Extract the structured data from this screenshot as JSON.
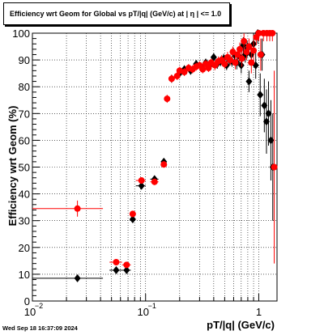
{
  "chart_data": {
    "type": "scatter",
    "title": "Efficiency wrt Geom for Global vs pT/|q| (GeV/c) at |  η  | <= 1.0",
    "xlabel": "pT/|q| (GeV/c)",
    "ylabel": "Efficiency wrt Geom (%)",
    "xscale": "log",
    "xlim": [
      0.01,
      1.45
    ],
    "ylim": [
      0,
      100
    ],
    "xticks": [
      {
        "value": 0.01,
        "base": "10",
        "exp": "−2"
      },
      {
        "value": 0.1,
        "base": "10",
        "exp": "−1"
      },
      {
        "value": 1,
        "base": "1",
        "exp": ""
      }
    ],
    "yticks": [
      "0",
      "10",
      "20",
      "30",
      "40",
      "50",
      "60",
      "70",
      "80",
      "90",
      "100"
    ],
    "grid": true,
    "timestamp": "Wed Sep 18 16:37:09 2024",
    "series": [
      {
        "color": "#000000",
        "marker": "diamond",
        "points": [
          {
            "x": 0.025,
            "y": 8.5,
            "xlo": 0.01,
            "xhi": 0.042,
            "err": 1.0
          },
          {
            "x": 0.055,
            "y": 11.5,
            "xlo": 0.048,
            "xhi": 0.062,
            "err": 0.8
          },
          {
            "x": 0.068,
            "y": 11.5,
            "xlo": 0.062,
            "xhi": 0.074,
            "err": 0.8
          },
          {
            "x": 0.077,
            "y": 30.5,
            "xlo": 0.074,
            "xhi": 0.08,
            "err": 1.2
          },
          {
            "x": 0.092,
            "y": 43.0,
            "xlo": 0.082,
            "xhi": 0.1,
            "err": 1.2
          },
          {
            "x": 0.12,
            "y": 45.5,
            "xlo": 0.11,
            "xhi": 0.13,
            "err": 1.2
          },
          {
            "x": 0.145,
            "y": 52.0,
            "xlo": 0.14,
            "xhi": 0.15,
            "err": 1.2
          },
          {
            "x": 0.17,
            "y": 83.0,
            "err": 1.5
          },
          {
            "x": 0.2,
            "y": 85.0,
            "err": 1.5
          },
          {
            "x": 0.22,
            "y": 86.5,
            "err": 1.5
          },
          {
            "x": 0.25,
            "y": 86.0,
            "err": 1.5
          },
          {
            "x": 0.28,
            "y": 88.5,
            "err": 1.5
          },
          {
            "x": 0.31,
            "y": 87.5,
            "err": 1.5
          },
          {
            "x": 0.34,
            "y": 89.0,
            "err": 1.5
          },
          {
            "x": 0.37,
            "y": 88.0,
            "err": 1.5
          },
          {
            "x": 0.4,
            "y": 91.0,
            "err": 1.5
          },
          {
            "x": 0.43,
            "y": 88.5,
            "err": 1.8
          },
          {
            "x": 0.46,
            "y": 89.5,
            "err": 1.8
          },
          {
            "x": 0.49,
            "y": 90.5,
            "err": 1.8
          },
          {
            "x": 0.52,
            "y": 88.0,
            "err": 1.8
          },
          {
            "x": 0.55,
            "y": 90.0,
            "err": 2.0
          },
          {
            "x": 0.58,
            "y": 89.5,
            "err": 2.0
          },
          {
            "x": 0.61,
            "y": 92.0,
            "err": 2.0
          },
          {
            "x": 0.64,
            "y": 89.0,
            "err": 2.5
          },
          {
            "x": 0.67,
            "y": 91.5,
            "err": 2.5
          },
          {
            "x": 0.7,
            "y": 88.0,
            "err": 3.0
          },
          {
            "x": 0.73,
            "y": 95.5,
            "err": 3.0
          },
          {
            "x": 0.76,
            "y": 92.0,
            "err": 3.0
          },
          {
            "x": 0.79,
            "y": 94.0,
            "err": 3.0
          },
          {
            "x": 0.82,
            "y": 82.0,
            "err": 4.0
          },
          {
            "x": 0.86,
            "y": 92.0,
            "err": 4.0
          },
          {
            "x": 0.9,
            "y": 96.0,
            "err": 4.0
          },
          {
            "x": 0.94,
            "y": 88.0,
            "err": 5.0
          },
          {
            "x": 0.98,
            "y": 100.0,
            "err": 4.0
          },
          {
            "x": 1.03,
            "y": 77.0,
            "err": 8.0
          },
          {
            "x": 1.07,
            "y": 92.0,
            "err": 6.0
          },
          {
            "x": 1.12,
            "y": 73.0,
            "err": 10.0
          },
          {
            "x": 1.17,
            "y": 67.0,
            "err": 12.0
          },
          {
            "x": 1.22,
            "y": 70.0,
            "err": 12.0
          },
          {
            "x": 1.28,
            "y": 60.0,
            "err": 15.0
          },
          {
            "x": 1.33,
            "y": 50.0,
            "err": 20.0
          }
        ]
      },
      {
        "color": "#ff0000",
        "marker": "circle",
        "points": [
          {
            "x": 0.025,
            "y": 34.5,
            "xlo": 0.01,
            "xhi": 0.042,
            "err": 3.0
          },
          {
            "x": 0.055,
            "y": 14.5,
            "xlo": 0.048,
            "xhi": 0.062,
            "err": 1.0
          },
          {
            "x": 0.068,
            "y": 13.5,
            "xlo": 0.062,
            "xhi": 0.074,
            "err": 1.0
          },
          {
            "x": 0.077,
            "y": 32.5,
            "xlo": 0.074,
            "xhi": 0.08,
            "err": 1.2
          },
          {
            "x": 0.092,
            "y": 45.0,
            "xlo": 0.082,
            "xhi": 0.1,
            "err": 1.2
          },
          {
            "x": 0.12,
            "y": 44.5,
            "xlo": 0.11,
            "xhi": 0.13,
            "err": 1.2
          },
          {
            "x": 0.145,
            "y": 51.0,
            "xlo": 0.14,
            "xhi": 0.15,
            "err": 1.2
          },
          {
            "x": 0.155,
            "y": 75.5,
            "err": 1.5
          },
          {
            "x": 0.17,
            "y": 83.0,
            "err": 1.5
          },
          {
            "x": 0.19,
            "y": 84.0,
            "err": 1.5
          },
          {
            "x": 0.2,
            "y": 86.0,
            "err": 1.5
          },
          {
            "x": 0.22,
            "y": 85.5,
            "err": 1.5
          },
          {
            "x": 0.24,
            "y": 87.0,
            "err": 1.5
          },
          {
            "x": 0.26,
            "y": 86.5,
            "err": 1.5
          },
          {
            "x": 0.28,
            "y": 87.5,
            "err": 1.5
          },
          {
            "x": 0.3,
            "y": 88.0,
            "err": 1.5
          },
          {
            "x": 0.32,
            "y": 86.5,
            "err": 1.5
          },
          {
            "x": 0.34,
            "y": 88.5,
            "err": 1.5
          },
          {
            "x": 0.36,
            "y": 87.0,
            "err": 1.5
          },
          {
            "x": 0.38,
            "y": 89.0,
            "err": 1.5
          },
          {
            "x": 0.41,
            "y": 88.0,
            "err": 1.8
          },
          {
            "x": 0.44,
            "y": 89.5,
            "err": 1.8
          },
          {
            "x": 0.47,
            "y": 90.0,
            "err": 1.8
          },
          {
            "x": 0.5,
            "y": 88.5,
            "err": 1.8
          },
          {
            "x": 0.53,
            "y": 91.0,
            "err": 2.0
          },
          {
            "x": 0.56,
            "y": 90.0,
            "err": 2.0
          },
          {
            "x": 0.59,
            "y": 93.0,
            "err": 2.0
          },
          {
            "x": 0.62,
            "y": 89.0,
            "err": 2.5
          },
          {
            "x": 0.65,
            "y": 92.0,
            "err": 2.5
          },
          {
            "x": 0.68,
            "y": 94.0,
            "err": 2.5
          },
          {
            "x": 0.71,
            "y": 90.5,
            "err": 3.0
          },
          {
            "x": 0.74,
            "y": 97.0,
            "err": 3.0
          },
          {
            "x": 0.78,
            "y": 93.0,
            "err": 3.0
          },
          {
            "x": 0.82,
            "y": 95.0,
            "err": 3.0
          },
          {
            "x": 0.86,
            "y": 89.0,
            "err": 4.0
          },
          {
            "x": 0.9,
            "y": 93.5,
            "err": 4.0
          },
          {
            "x": 0.95,
            "y": 98.5,
            "err": 3.0
          },
          {
            "x": 1.0,
            "y": 100.0,
            "err": 3.0
          },
          {
            "x": 1.04,
            "y": 92.0,
            "err": 6.0
          },
          {
            "x": 1.1,
            "y": 100.0,
            "err": 3.0
          },
          {
            "x": 1.18,
            "y": 100.0,
            "err": 3.0
          },
          {
            "x": 1.25,
            "y": 100.0,
            "err": 3.0
          },
          {
            "x": 1.32,
            "y": 100.0,
            "err": 3.0
          },
          {
            "x": 1.37,
            "y": 50.0,
            "err": 36.0
          }
        ]
      }
    ]
  }
}
